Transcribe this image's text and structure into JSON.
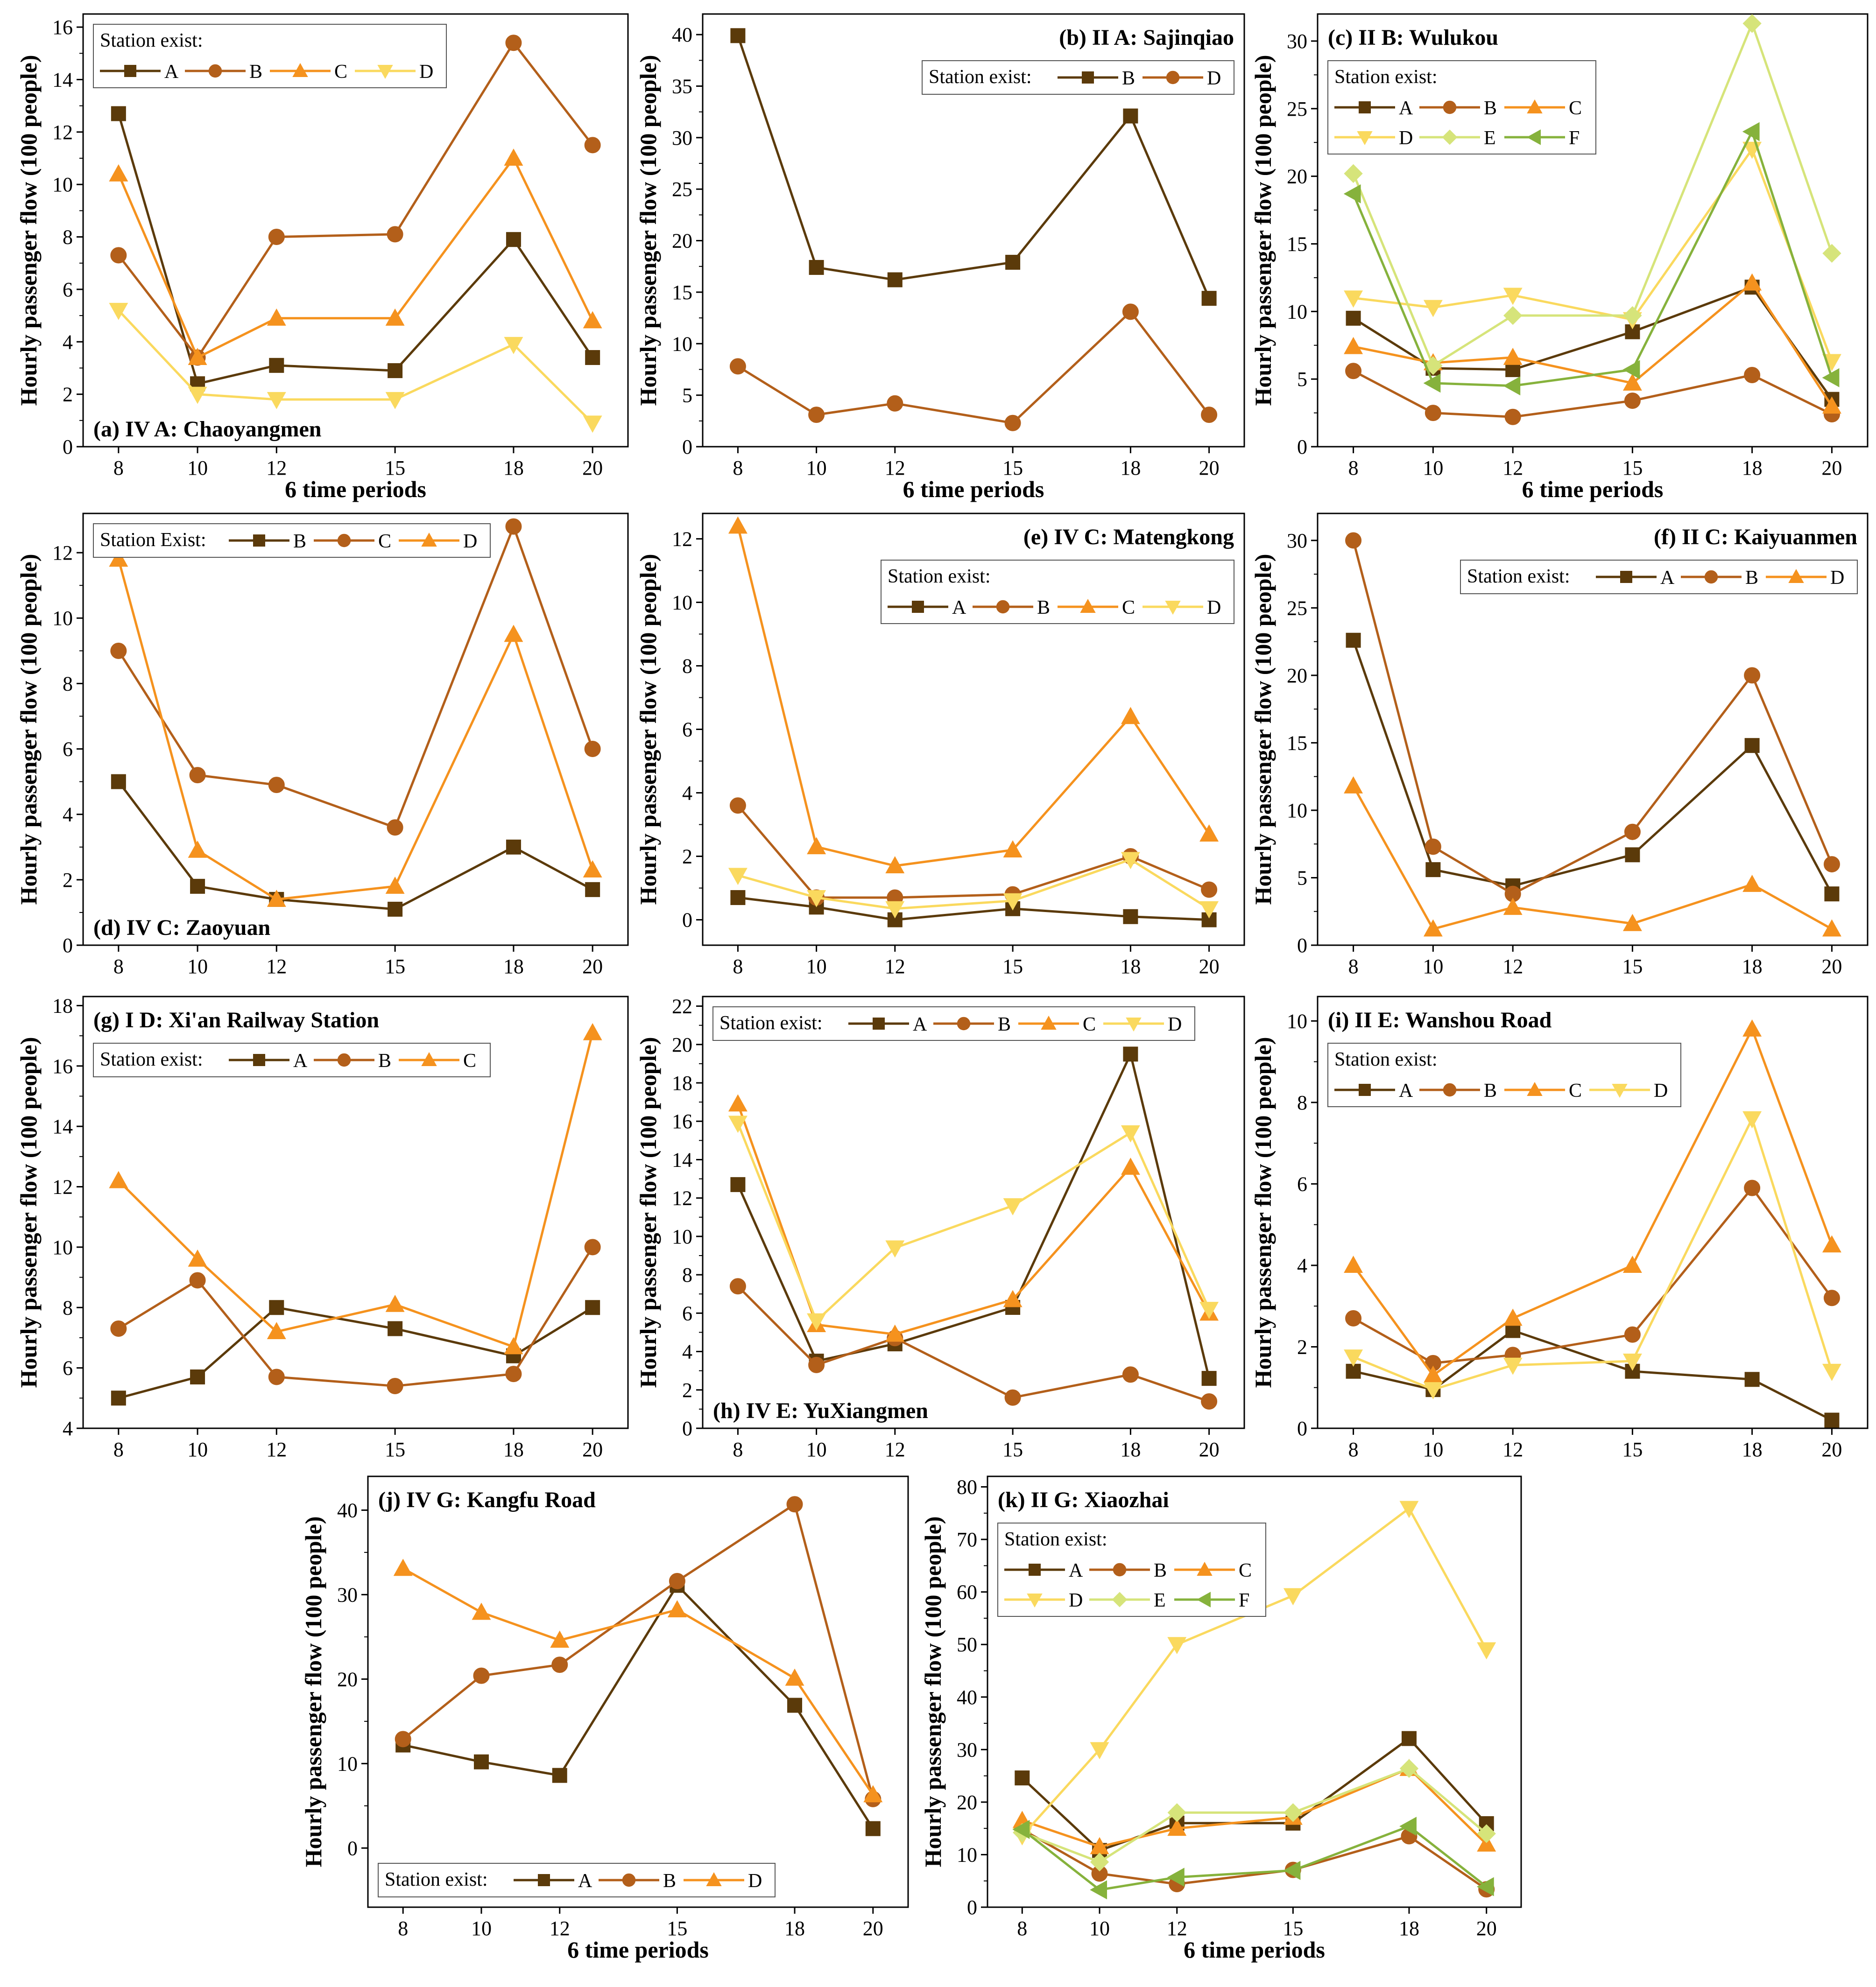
{
  "colors": {
    "A": "#5b3a0a",
    "B": "#b35f1a",
    "C": "#f5921e",
    "D": "#fad95e",
    "E": "#d6e47a",
    "F": "#86b23c"
  },
  "chart_data": [
    {
      "type": "line",
      "title": "(a) IV A: Chaoyangmen",
      "title_pos": "bottom-left",
      "legend_title": "Station exist:",
      "legend_layout": "stacked",
      "legend_pos": "top-left",
      "x": [
        8,
        10,
        12,
        15,
        18,
        20
      ],
      "xlabel": "6 time periods",
      "ylabel": "Hourly passenger flow (100 people)",
      "ylim": [
        0,
        16.5
      ],
      "yticks": [
        0,
        2,
        4,
        6,
        8,
        10,
        12,
        14,
        16
      ],
      "series": [
        {
          "name": "A",
          "values": [
            12.7,
            2.4,
            3.1,
            2.9,
            7.9,
            3.4
          ]
        },
        {
          "name": "B",
          "values": [
            7.3,
            3.4,
            8.0,
            8.1,
            15.4,
            11.5
          ]
        },
        {
          "name": "C",
          "values": [
            10.4,
            3.4,
            4.9,
            4.9,
            11.0,
            4.8
          ]
        },
        {
          "name": "D",
          "values": [
            5.2,
            2.0,
            1.8,
            1.8,
            3.9,
            0.9
          ]
        }
      ]
    },
    {
      "type": "line",
      "title": "(b) II A: Sajinqiao",
      "title_pos": "top-right",
      "legend_title": "Station exist:",
      "legend_layout": "inline",
      "legend_pos": "top-right",
      "x": [
        8,
        10,
        12,
        15,
        18,
        20
      ],
      "xlabel": "6 time periods",
      "ylabel": "Hourly passenger flow (100 people)",
      "ylim": [
        0,
        42
      ],
      "yticks": [
        0,
        5,
        10,
        15,
        20,
        25,
        30,
        35,
        40
      ],
      "series": [
        {
          "name": "B",
          "color_key": "A",
          "values": [
            39.9,
            17.4,
            16.2,
            17.9,
            32.1,
            14.4
          ]
        },
        {
          "name": "D",
          "color_key": "B",
          "values": [
            7.8,
            3.1,
            4.2,
            2.3,
            13.1,
            3.1
          ]
        }
      ]
    },
    {
      "type": "line",
      "title": "(c) II B: Wulukou",
      "title_pos": "top-left",
      "legend_title": "Station exist:",
      "legend_layout": "grid3",
      "legend_pos": "top-left",
      "x": [
        8,
        10,
        12,
        15,
        18,
        20
      ],
      "xlabel": "6 time periods",
      "ylabel": "Hourly passenger flow (100 people)",
      "ylim": [
        0,
        32
      ],
      "yticks": [
        0,
        5,
        10,
        15,
        20,
        25,
        30
      ],
      "series": [
        {
          "name": "A",
          "values": [
            9.5,
            5.8,
            5.7,
            8.5,
            11.8,
            3.5
          ]
        },
        {
          "name": "B",
          "values": [
            5.6,
            2.5,
            2.2,
            3.4,
            5.3,
            2.4
          ]
        },
        {
          "name": "C",
          "values": [
            7.4,
            6.2,
            6.6,
            4.7,
            12.1,
            3.0
          ]
        },
        {
          "name": "D",
          "values": [
            11.0,
            10.3,
            11.2,
            9.4,
            22.0,
            6.3
          ]
        },
        {
          "name": "E",
          "values": [
            20.2,
            6.0,
            9.7,
            9.7,
            31.3,
            14.3
          ]
        },
        {
          "name": "F",
          "values": [
            18.7,
            4.7,
            4.5,
            5.7,
            23.3,
            5.1
          ]
        }
      ]
    },
    {
      "type": "line",
      "title": "(d) IV C: Zaoyuan",
      "title_pos": "bottom-left",
      "legend_title": "Station Exist:",
      "legend_layout": "inline",
      "legend_pos": "top-left",
      "x": [
        8,
        10,
        12,
        15,
        18,
        20
      ],
      "xlabel": "",
      "ylabel": "Hourly passenger flow (100 people)",
      "ylim": [
        0,
        13.2
      ],
      "yticks": [
        0,
        2,
        4,
        6,
        8,
        10,
        12
      ],
      "series": [
        {
          "name": "B",
          "color_key": "A",
          "values": [
            5.0,
            1.8,
            1.4,
            1.1,
            3.0,
            1.7
          ]
        },
        {
          "name": "C",
          "color_key": "B",
          "values": [
            9.0,
            5.2,
            4.9,
            3.6,
            12.8,
            6.0
          ]
        },
        {
          "name": "D",
          "color_key": "C",
          "values": [
            11.8,
            2.9,
            1.4,
            1.8,
            9.5,
            2.3
          ]
        }
      ]
    },
    {
      "type": "line",
      "title": "(e) IV C: Matengkong",
      "title_pos": "top-right",
      "legend_title": "Station exist:",
      "legend_layout": "stacked",
      "legend_pos": "top-right",
      "x": [
        8,
        10,
        12,
        15,
        18,
        20
      ],
      "xlabel": "",
      "ylabel": "Hourly passenger flow (100 people)",
      "ylim": [
        -0.8,
        12.8
      ],
      "yticks": [
        0,
        2,
        4,
        6,
        8,
        10,
        12
      ],
      "series": [
        {
          "name": "A",
          "values": [
            0.7,
            0.4,
            0.0,
            0.35,
            0.1,
            0.0
          ]
        },
        {
          "name": "B",
          "values": [
            3.6,
            0.7,
            0.7,
            0.8,
            2.0,
            0.95
          ]
        },
        {
          "name": "C",
          "values": [
            12.4,
            2.3,
            1.7,
            2.2,
            6.4,
            2.7
          ]
        },
        {
          "name": "D",
          "values": [
            1.4,
            0.7,
            0.35,
            0.6,
            1.9,
            0.35
          ]
        }
      ]
    },
    {
      "type": "line",
      "title": "(f) II C: Kaiyuanmen",
      "title_pos": "top-right",
      "legend_title": "Station exist:",
      "legend_layout": "inline",
      "legend_pos": "top-right",
      "x": [
        8,
        10,
        12,
        15,
        18,
        20
      ],
      "xlabel": "",
      "ylabel": "Hourly passenger flow (100 people)",
      "ylim": [
        0,
        32
      ],
      "yticks": [
        0,
        5,
        10,
        15,
        20,
        25,
        30
      ],
      "series": [
        {
          "name": "A",
          "values": [
            22.6,
            5.6,
            4.4,
            6.7,
            14.8,
            3.8
          ]
        },
        {
          "name": "B",
          "values": [
            30.0,
            7.3,
            3.8,
            8.4,
            20.0,
            6.0
          ]
        },
        {
          "name": "D",
          "color_key": "C",
          "values": [
            11.8,
            1.2,
            2.8,
            1.6,
            4.5,
            1.2
          ]
        }
      ]
    },
    {
      "type": "line",
      "title": "(g) I D: Xi'an Railway Station",
      "title_pos": "top-left",
      "legend_title": "Station exist:",
      "legend_layout": "inline",
      "legend_pos": "top-left",
      "x": [
        8,
        10,
        12,
        15,
        18,
        20
      ],
      "xlabel": "",
      "ylabel": "Hourly passenger flow (100 people)",
      "ylim": [
        4,
        18.3
      ],
      "yticks": [
        4,
        6,
        8,
        10,
        12,
        14,
        16,
        18
      ],
      "series": [
        {
          "name": "A",
          "values": [
            5.0,
            5.7,
            8.0,
            7.3,
            6.4,
            8.0
          ]
        },
        {
          "name": "B",
          "values": [
            7.3,
            8.9,
            5.7,
            5.4,
            5.8,
            10.0
          ]
        },
        {
          "name": "C",
          "values": [
            12.2,
            9.6,
            7.2,
            8.1,
            6.7,
            17.1
          ]
        }
      ]
    },
    {
      "type": "line",
      "title": "(h) IV E: YuXiangmen",
      "title_pos": "bottom-left",
      "legend_title": "Station exist:",
      "legend_layout": "inline",
      "legend_pos": "top-left",
      "x": [
        8,
        10,
        12,
        15,
        18,
        20
      ],
      "xlabel": "",
      "ylabel": "Hourly passenger flow (100 people)",
      "ylim": [
        0,
        22.5
      ],
      "yticks": [
        0,
        2,
        4,
        6,
        8,
        10,
        12,
        14,
        16,
        18,
        20,
        22
      ],
      "series": [
        {
          "name": "A",
          "values": [
            12.7,
            3.5,
            4.4,
            6.3,
            19.5,
            2.6
          ]
        },
        {
          "name": "B",
          "values": [
            7.4,
            3.3,
            4.7,
            1.6,
            2.8,
            1.4
          ]
        },
        {
          "name": "C",
          "values": [
            16.9,
            5.4,
            4.9,
            6.7,
            13.6,
            6.0
          ]
        },
        {
          "name": "D",
          "values": [
            15.9,
            5.6,
            9.4,
            11.6,
            15.4,
            6.2
          ]
        }
      ]
    },
    {
      "type": "line",
      "title": "(i) II E: Wanshou Road",
      "title_pos": "top-left",
      "legend_title": "Station exist:",
      "legend_layout": "stacked",
      "legend_pos": "top-left",
      "x": [
        8,
        10,
        12,
        15,
        18,
        20
      ],
      "xlabel": "",
      "ylabel": "Hourly passenger flow (100 people)",
      "ylim": [
        0,
        10.6
      ],
      "yticks": [
        0,
        2,
        4,
        6,
        8,
        10
      ],
      "series": [
        {
          "name": "A",
          "values": [
            1.4,
            0.95,
            2.4,
            1.4,
            1.2,
            0.2
          ]
        },
        {
          "name": "B",
          "values": [
            2.7,
            1.6,
            1.8,
            2.3,
            5.9,
            3.2
          ]
        },
        {
          "name": "C",
          "values": [
            4.0,
            1.3,
            2.7,
            4.0,
            9.8,
            4.5
          ]
        },
        {
          "name": "D",
          "values": [
            1.75,
            0.95,
            1.55,
            1.65,
            7.6,
            1.4
          ]
        }
      ]
    },
    {
      "type": "line",
      "title": "(j) IV G: Kangfu Road",
      "title_pos": "top-left",
      "legend_title": "Station exist:",
      "legend_layout": "inline",
      "legend_pos": "bottom-left",
      "x": [
        8,
        10,
        12,
        15,
        18,
        20
      ],
      "xlabel": "6 time periods",
      "ylabel": "Hourly passenger flow (100 people)",
      "ylim": [
        -7,
        44
      ],
      "yticks": [
        0,
        10,
        20,
        30,
        40
      ],
      "series": [
        {
          "name": "A",
          "values": [
            12.2,
            10.2,
            8.6,
            31.1,
            16.9,
            2.3
          ]
        },
        {
          "name": "B",
          "values": [
            12.9,
            20.4,
            21.7,
            31.6,
            40.7,
            5.8
          ]
        },
        {
          "name": "D",
          "color_key": "C",
          "values": [
            33.1,
            27.9,
            24.6,
            28.2,
            20.1,
            6.3
          ]
        }
      ]
    },
    {
      "type": "line",
      "title": "(k) II G: Xiaozhai",
      "title_pos": "top-left",
      "legend_title": "Station exist:",
      "legend_layout": "grid3",
      "legend_pos": "top-left",
      "x": [
        8,
        10,
        12,
        15,
        18,
        20
      ],
      "xlabel": "6 time periods",
      "ylabel": "Hourly passenger flow (100 people)",
      "ylim": [
        0,
        82
      ],
      "yticks": [
        0,
        10,
        20,
        30,
        40,
        50,
        60,
        70,
        80
      ],
      "series": [
        {
          "name": "A",
          "values": [
            24.6,
            10.8,
            16.0,
            16.0,
            32.1,
            15.9
          ]
        },
        {
          "name": "B",
          "values": [
            14.8,
            6.4,
            4.4,
            7.1,
            13.5,
            3.4
          ]
        },
        {
          "name": "C",
          "values": [
            16.5,
            11.5,
            15.0,
            17.1,
            26.4,
            12.0
          ]
        },
        {
          "name": "D",
          "values": [
            13.6,
            30.0,
            50.0,
            59.3,
            75.9,
            49.0
          ]
        },
        {
          "name": "E",
          "values": [
            14.2,
            8.6,
            18.0,
            18.0,
            26.4,
            14.0
          ]
        },
        {
          "name": "F",
          "values": [
            14.8,
            3.3,
            5.7,
            7.0,
            15.4,
            3.9
          ]
        }
      ]
    }
  ]
}
